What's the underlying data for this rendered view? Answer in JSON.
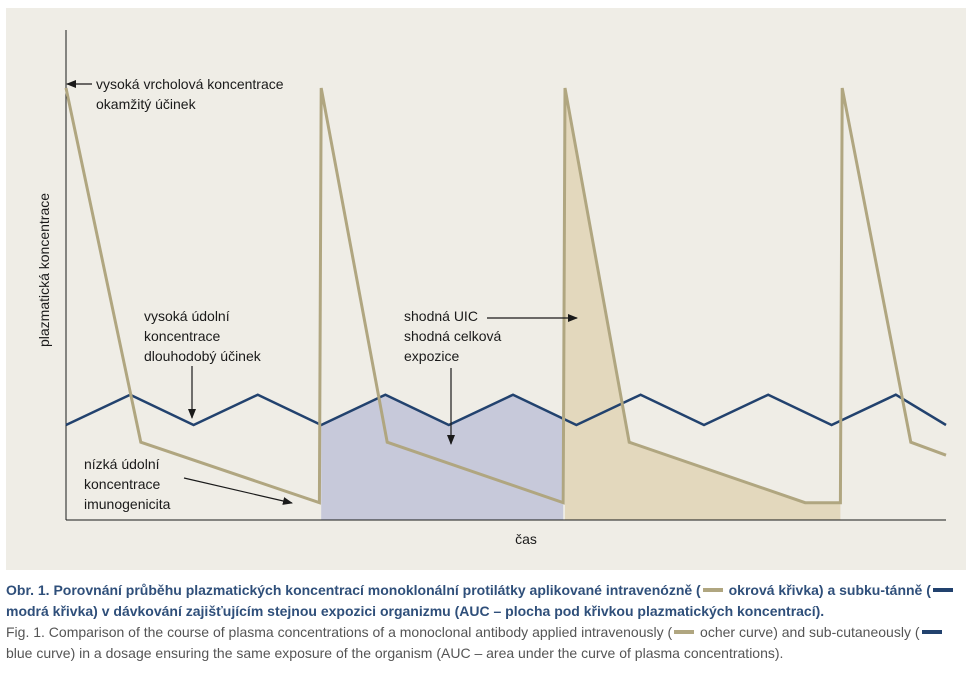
{
  "chart_data": {
    "type": "line",
    "title": "",
    "xlabel": "čas",
    "ylabel": "plazmatická koncentrace",
    "xlim": [
      0,
      100
    ],
    "ylim": [
      0,
      100
    ],
    "grid": false,
    "series": [
      {
        "name": "okrová křivka",
        "x": [
          0,
          8.5,
          28.8,
          29,
          36.5,
          56.5,
          56.7,
          64,
          84,
          88,
          88.2,
          96,
          100
        ],
        "y": [
          100,
          18,
          4,
          100,
          18,
          4,
          100,
          18,
          4,
          4,
          100,
          18,
          15
        ]
      },
      {
        "name": "modrá křivka",
        "x": [
          0,
          7.3,
          14.5,
          21.8,
          29,
          36.3,
          43.5,
          50.8,
          58,
          65.3,
          72.5,
          79.8,
          87,
          94.3,
          100
        ],
        "y": [
          22,
          29,
          22,
          29,
          22,
          29,
          22,
          29,
          22,
          29,
          22,
          29,
          22,
          29,
          22
        ]
      }
    ],
    "shaded_areas": [
      {
        "x_start": 29,
        "x_end": 56.5,
        "curve": "modrá křivka",
        "color": "#c7c9da"
      },
      {
        "x_start": 56.7,
        "x_end": 88,
        "curve": "okrová křivka",
        "color": "#e3d8bd"
      }
    ],
    "annotations": [
      {
        "id": "peak",
        "lines": [
          "vysoká vrcholová koncentrace",
          "okamžitý účinek"
        ]
      },
      {
        "id": "trough-high",
        "lines": [
          "vysoká údolní",
          "koncentrace",
          "dlouhodobý účinek"
        ]
      },
      {
        "id": "equal",
        "lines": [
          "shodná UIC",
          "shodná celková",
          "expozice"
        ]
      },
      {
        "id": "trough-low",
        "lines": [
          "nízká údolní",
          "koncentrace",
          "imunogenicita"
        ]
      }
    ]
  },
  "colors": {
    "ocher": "#b0a680",
    "blue": "#22426e",
    "fill_blue": "#c7c9da",
    "fill_ocher": "#e3d8bd",
    "panel": "#efede6"
  },
  "caption": {
    "cz_part1": "Obr. 1. Porovnání průběhu plazmatických koncentrací monoklonální protilátky aplikované intravenózně (",
    "cz_part2": " okrová křivka) a subku-tánně (",
    "cz_part3": " modrá křivka) v dávkování zajišťujícím stejnou expozici organizmu (AUC – plocha pod křivkou plazmatických koncentrací).",
    "en_part1": "Fig. 1. Comparison of the course of plasma concentrations of a monoclonal antibody applied intravenously (",
    "en_part2": " ocher curve) and sub-cutaneously (",
    "en_part3": " blue curve) in a dosage ensuring the same exposure of the organism (AUC – area under the curve of plasma concentrations)."
  }
}
